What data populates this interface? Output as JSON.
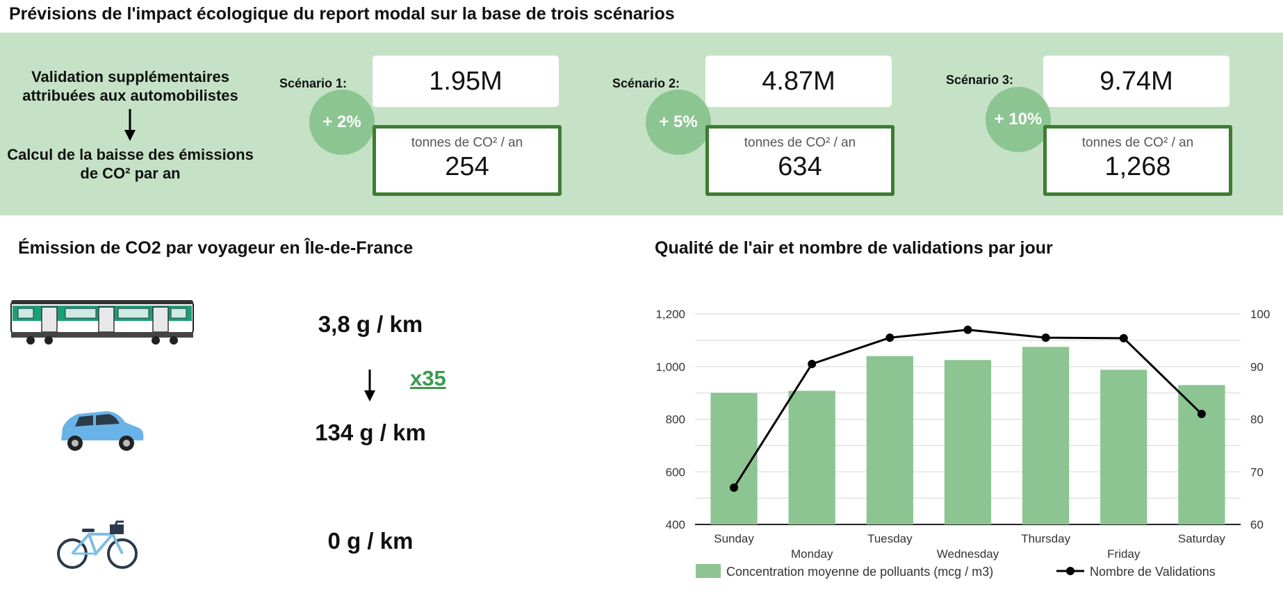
{
  "header": {
    "title": "Prévisions de l'impact écologique du report modal sur la base de trois scénarios"
  },
  "flow": {
    "top_text": "Validation supplémentaires attribuées aux automobilistes",
    "bottom_text": "Calcul de la baisse des émissions de CO² par an"
  },
  "scenarios": [
    {
      "label": "Scénario 1:",
      "validations": "1.95M",
      "percent": "+ 2%",
      "unit": "tonnes de CO² / an",
      "co2": "254"
    },
    {
      "label": "Scénario 2:",
      "validations": "4.87M",
      "percent": "+ 5%",
      "unit": "tonnes de CO² / an",
      "co2": "634"
    },
    {
      "label": "Scénario 3:",
      "validations": "9.74M",
      "percent": "+ 10%",
      "unit": "tonnes de CO² / an",
      "co2": "1,268"
    }
  ],
  "emissions": {
    "title": "Émission de CO2 par voyageur en Île-de-France",
    "train": "3,8 g / km",
    "car": "134 g / km",
    "bike": "0 g / km",
    "multiplier": "x35"
  },
  "icons": {
    "train": "train-icon",
    "car": "car-icon",
    "bike": "bike-icon",
    "arrow": "arrow-down-icon"
  },
  "colors": {
    "band": "#c5e1c6",
    "bar": "#8cc591",
    "box_border": "#3d7d32",
    "multiplier": "#3a9a4f",
    "line": "#000000"
  },
  "chart_title": "Qualité de l'air et nombre de validations par jour",
  "chart_data": {
    "type": "bar",
    "categories": [
      "Sunday",
      "Monday",
      "Tuesday",
      "Wednesday",
      "Thursday",
      "Friday",
      "Saturday"
    ],
    "series": [
      {
        "name": "Concentration moyenne de polluants (mcg / m3)",
        "type": "bar",
        "axis": "left",
        "values": [
          900,
          908,
          1040,
          1025,
          1075,
          988,
          930
        ]
      },
      {
        "name": "Nombre de Validations",
        "type": "line",
        "axis": "right",
        "values": [
          67,
          90.5,
          95.5,
          97,
          95.5,
          95.4,
          81
        ]
      }
    ],
    "ylim_left": [
      400,
      1200
    ],
    "yticks_left": [
      "400",
      "600",
      "800",
      "1,000",
      "1,200"
    ],
    "ylim_right": [
      60,
      100
    ],
    "yticks_right": [
      "60",
      "70",
      "80",
      "90",
      "100"
    ],
    "grid": true,
    "legend": "bottom"
  }
}
